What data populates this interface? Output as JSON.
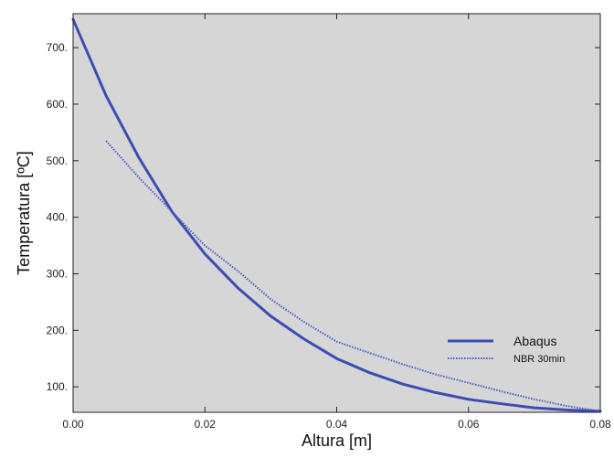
{
  "chart_data": {
    "type": "line",
    "xlabel": "Altura [m]",
    "ylabel": "Temperatura [ºC]",
    "xlim": [
      0,
      0.08
    ],
    "ylim": [
      55,
      760
    ],
    "x_ticks": [
      0,
      0.02,
      0.04,
      0.06,
      0.08
    ],
    "x_tick_labels": [
      "0.00",
      "0.02",
      "0.04",
      "0.06",
      "0.08"
    ],
    "y_ticks": [
      100,
      200,
      300,
      400,
      500,
      600,
      700
    ],
    "y_tick_labels": [
      "100.",
      "200.",
      "300.",
      "400.",
      "500.",
      "600.",
      "700."
    ],
    "grid": false,
    "legend_position": "bottom-right",
    "background_color": "#d6d6d6",
    "series": [
      {
        "name": "Abaqus",
        "style": "solid",
        "color": "#3b4db3",
        "x": [
          0,
          0.005,
          0.01,
          0.015,
          0.02,
          0.025,
          0.03,
          0.035,
          0.04,
          0.045,
          0.05,
          0.055,
          0.06,
          0.065,
          0.07,
          0.075,
          0.08
        ],
        "y": [
          750,
          615,
          505,
          410,
          335,
          275,
          225,
          185,
          150,
          125,
          105,
          90,
          78,
          70,
          63,
          59,
          57
        ]
      },
      {
        "name": "NBR 30min",
        "style": "dotted",
        "color": "#4a5cc4",
        "x": [
          0.005,
          0.01,
          0.015,
          0.02,
          0.025,
          0.03,
          0.035,
          0.04,
          0.045,
          0.05,
          0.055,
          0.06,
          0.065,
          0.07,
          0.075,
          0.08
        ],
        "y": [
          535,
          470,
          410,
          350,
          305,
          255,
          215,
          180,
          160,
          140,
          122,
          107,
          92,
          78,
          66,
          57
        ]
      }
    ]
  }
}
